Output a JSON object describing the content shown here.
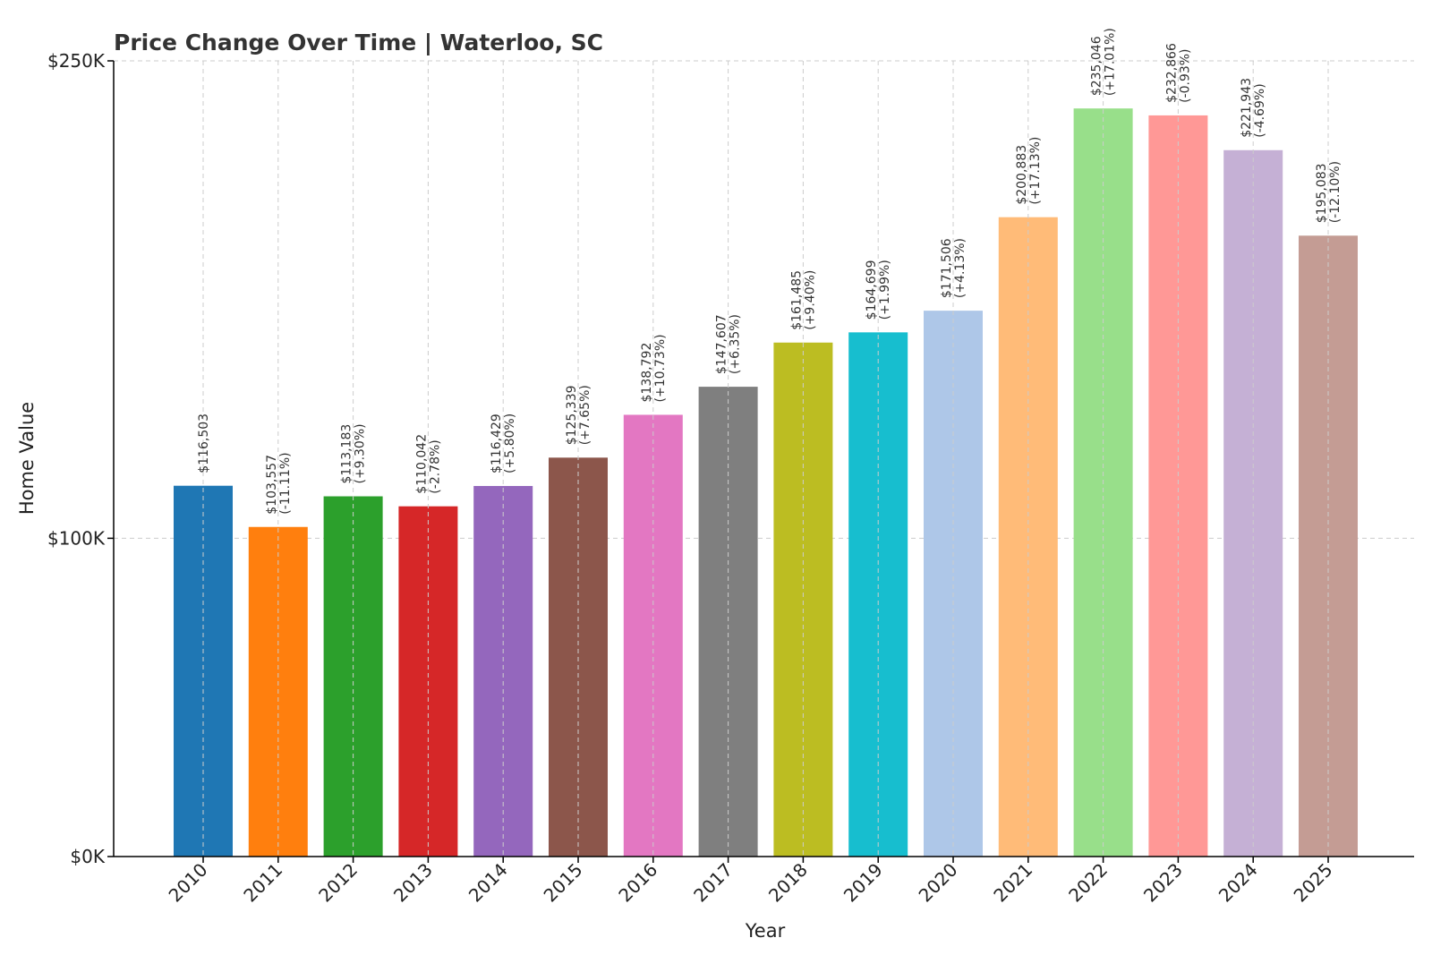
{
  "chart_data": {
    "type": "bar",
    "title": "Price Change Over Time | Waterloo, SC",
    "xlabel": "Year",
    "ylabel": "Home Value",
    "ylim": [
      0,
      250000
    ],
    "grid": true,
    "categories": [
      "2010",
      "2011",
      "2012",
      "2013",
      "2014",
      "2015",
      "2016",
      "2017",
      "2018",
      "2019",
      "2020",
      "2021",
      "2022",
      "2023",
      "2024",
      "2025"
    ],
    "values": [
      116503,
      103557,
      113183,
      110042,
      116429,
      125339,
      138792,
      147607,
      161485,
      164699,
      171506,
      200883,
      235046,
      232866,
      221943,
      195083
    ],
    "value_labels": [
      "$116,503",
      "$103,557",
      "$113,183",
      "$110,042",
      "$116,429",
      "$125,339",
      "$138,792",
      "$147,607",
      "$161,485",
      "$164,699",
      "$171,506",
      "$200,883",
      "$235,046",
      "$232,866",
      "$221,943",
      "$195,083"
    ],
    "change_labels": [
      "",
      "(-11.11%)",
      "(+9.30%)",
      "(-2.78%)",
      "(+5.80%)",
      "(+7.65%)",
      "(+10.73%)",
      "(+6.35%)",
      "(+9.40%)",
      "(+1.99%)",
      "(+4.13%)",
      "(+17.13%)",
      "(+17.01%)",
      "(-0.93%)",
      "(-4.69%)",
      "(-12.10%)"
    ],
    "colors": [
      "#1f77b4",
      "#ff7f0e",
      "#2ca02c",
      "#d62728",
      "#9467bd",
      "#8c564b",
      "#e377c2",
      "#7f7f7f",
      "#bcbd22",
      "#17becf",
      "#aec7e8",
      "#ffbb78",
      "#98df8a",
      "#ff9896",
      "#c5b0d5",
      "#c49c94"
    ],
    "y_ticks": [
      {
        "value": 0,
        "label": "$0K"
      },
      {
        "value": 100000,
        "label": "$100K"
      },
      {
        "value": 250000,
        "label": "$250K"
      }
    ]
  }
}
